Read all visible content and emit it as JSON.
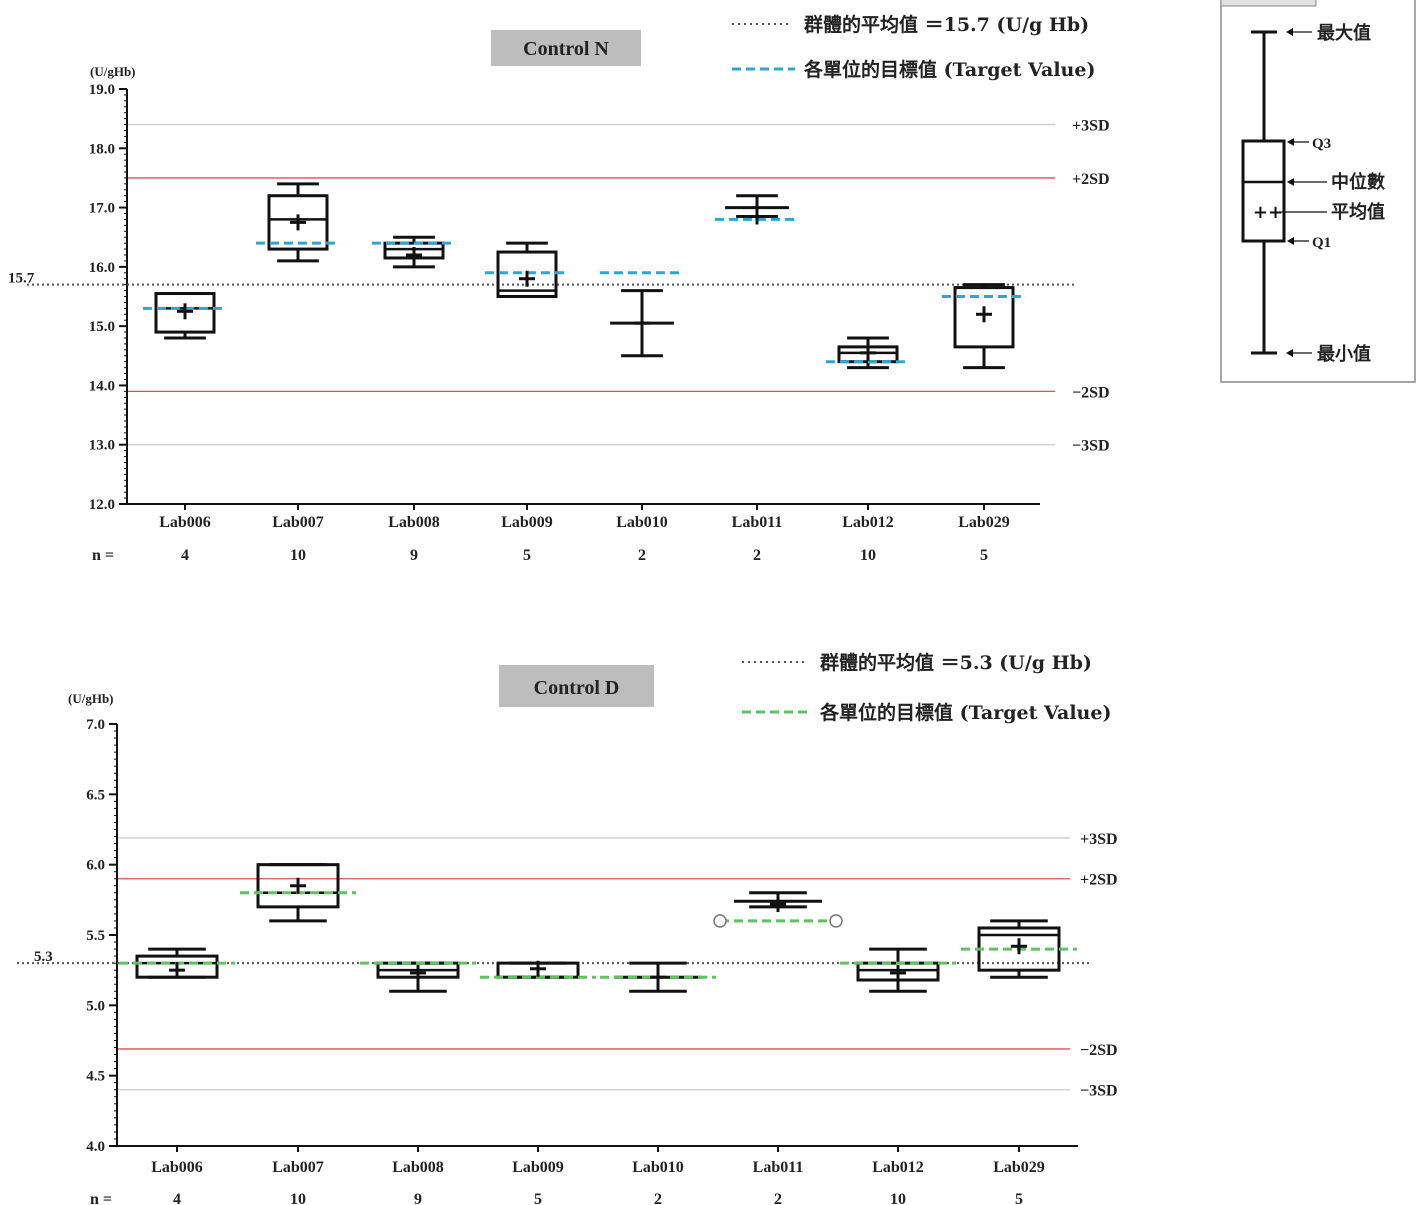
{
  "chart_data": [
    {
      "type": "box",
      "title": "Control N",
      "unit_label": "(U/gHb)",
      "ylim": [
        12.0,
        19.0
      ],
      "yticks": [
        "19.0",
        "18.0",
        "17.0",
        "16.0",
        "15.0",
        "14.0",
        "13.0",
        "12.0"
      ],
      "n_label": "n =",
      "group_mean": {
        "value": 15.7,
        "label": "15.7",
        "legend": "群體的平均值 ＝15.7 (U/g Hb)",
        "color": "#555555"
      },
      "target_legend": "各單位的目標值 (Target Value)",
      "target_color": "#2aa7d6",
      "reference_lines": [
        {
          "label": "+3SD",
          "value": 18.4,
          "color": "#cccccc"
        },
        {
          "label": "+2SD",
          "value": 17.5,
          "color": "#d9534f"
        },
        {
          "label": "−2SD",
          "value": 13.9,
          "color": "#d9534f"
        },
        {
          "label": "−3SD",
          "value": 13.0,
          "color": "#cccccc"
        }
      ],
      "categories": [
        "Lab006",
        "Lab007",
        "Lab008",
        "Lab009",
        "Lab010",
        "Lab011",
        "Lab012",
        "Lab029"
      ],
      "n": [
        "4",
        "10",
        "9",
        "5",
        "2",
        "2",
        "10",
        "5"
      ],
      "boxes": [
        {
          "min": 14.8,
          "q1": 14.9,
          "median": 15.3,
          "q3": 15.55,
          "max": 15.55,
          "mean": 15.25,
          "target": 15.3
        },
        {
          "min": 16.1,
          "q1": 16.3,
          "median": 16.8,
          "q3": 17.2,
          "max": 17.4,
          "mean": 16.75,
          "target": 16.4
        },
        {
          "min": 16.0,
          "q1": 16.15,
          "median": 16.3,
          "q3": 16.4,
          "max": 16.5,
          "mean": 16.2,
          "target": 16.4
        },
        {
          "min": 15.5,
          "q1": 15.5,
          "median": 15.6,
          "q3": 16.25,
          "max": 16.4,
          "mean": 15.8,
          "target": 15.9
        },
        {
          "min": 14.5,
          "q1": 15.05,
          "median": 15.05,
          "q3": 15.05,
          "max": 15.6,
          "mean": 15.05,
          "target": 15.9,
          "no_box": true
        },
        {
          "min": 16.85,
          "q1": 17.0,
          "median": 17.0,
          "q3": 17.0,
          "max": 17.2,
          "mean": 16.85,
          "target": 16.8,
          "no_box": true
        },
        {
          "min": 14.3,
          "q1": 14.4,
          "median": 14.55,
          "q3": 14.65,
          "max": 14.8,
          "mean": 14.55,
          "target": 14.4
        },
        {
          "min": 14.3,
          "q1": 14.65,
          "median": 15.65,
          "q3": 15.65,
          "max": 15.7,
          "mean": 15.2,
          "target": 15.5
        }
      ]
    },
    {
      "type": "box",
      "title": "Control D",
      "unit_label": "(U/gHb)",
      "ylim": [
        4.0,
        7.0
      ],
      "yticks": [
        "7.0",
        "6.5",
        "6.0",
        "5.5",
        "5.0",
        "4.5",
        "4.0"
      ],
      "n_label": "n =",
      "group_mean": {
        "value": 5.3,
        "label": "5.3",
        "legend": "群體的平均值 ＝5.3 (U/g Hb)",
        "color": "#555555"
      },
      "target_legend": "各單位的目標值 (Target Value)",
      "target_color": "#5cc45c",
      "reference_lines": [
        {
          "label": "+3SD",
          "value": 6.19,
          "color": "#cccccc"
        },
        {
          "label": "+2SD",
          "value": 5.9,
          "color": "#d9534f"
        },
        {
          "label": "−2SD",
          "value": 4.69,
          "color": "#d9534f"
        },
        {
          "label": "−3SD",
          "value": 4.4,
          "color": "#cccccc"
        }
      ],
      "categories": [
        "Lab006",
        "Lab007",
        "Lab008",
        "Lab009",
        "Lab010",
        "Lab011",
        "Lab012",
        "Lab029"
      ],
      "n": [
        "4",
        "10",
        "9",
        "5",
        "2",
        "2",
        "10",
        "5"
      ],
      "boxes": [
        {
          "min": 5.2,
          "q1": 5.2,
          "median": 5.3,
          "q3": 5.35,
          "max": 5.4,
          "mean": 5.25,
          "target": 5.3
        },
        {
          "min": 5.6,
          "q1": 5.7,
          "median": 5.8,
          "q3": 6.0,
          "max": 6.0,
          "mean": 5.85,
          "target": 5.8
        },
        {
          "min": 5.1,
          "q1": 5.2,
          "median": 5.25,
          "q3": 5.3,
          "max": 5.3,
          "mean": 5.23,
          "target": 5.3
        },
        {
          "min": 5.2,
          "q1": 5.2,
          "median": 5.3,
          "q3": 5.3,
          "max": 5.3,
          "mean": 5.26,
          "target": 5.2
        },
        {
          "min": 5.1,
          "q1": 5.2,
          "median": 5.2,
          "q3": 5.2,
          "max": 5.3,
          "mean": 5.2,
          "target": 5.2,
          "no_box": true
        },
        {
          "min": 5.7,
          "q1": 5.74,
          "median": 5.74,
          "q3": 5.74,
          "max": 5.8,
          "mean": 5.72,
          "target": 5.6,
          "no_box": true,
          "target_circles": true
        },
        {
          "min": 5.1,
          "q1": 5.18,
          "median": 5.25,
          "q3": 5.3,
          "max": 5.4,
          "mean": 5.23,
          "target": 5.3
        },
        {
          "min": 5.2,
          "q1": 5.25,
          "median": 5.5,
          "q3": 5.55,
          "max": 5.6,
          "mean": 5.42,
          "target": 5.4
        }
      ]
    }
  ],
  "key": {
    "max": "最大值",
    "q3": "Q3",
    "median": "中位數",
    "mean": "平均值",
    "q1": "Q1",
    "min": "最小值"
  }
}
